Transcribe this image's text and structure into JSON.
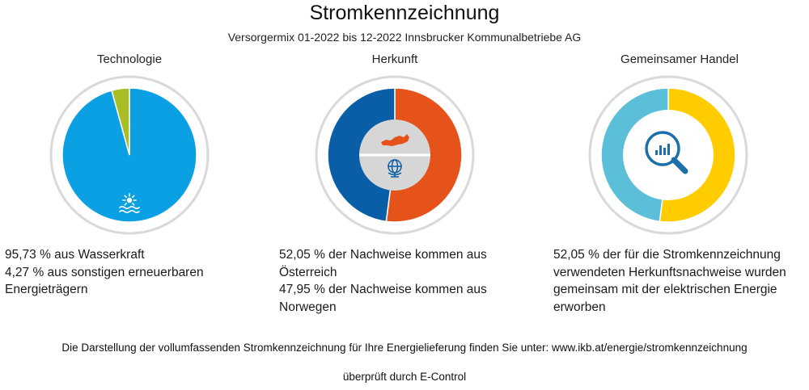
{
  "title": "Stromkennzeichnung",
  "subtitle": "Versorgermix 01-2022 bis 12-2022 Innsbrucker Kommunalbetriebe AG",
  "colors": {
    "hydro": "#0aa0e3",
    "other_renewable": "#a9bd25",
    "austria": "#e5531a",
    "norway": "#0a5ea8",
    "joint_trade": "#ffcc00",
    "separate_trade": "#5bbfd9",
    "ring": "#d9d9d9"
  },
  "charts": [
    {
      "title": "Technologie",
      "description": [
        "95,73 % aus Wasserkraft",
        "4,27 % aus sonstigen erneuerbaren Energieträgern"
      ]
    },
    {
      "title": "Herkunft",
      "description": [
        "52,05 % der Nachweise kommen aus Österreich",
        "47,95 % der Nachweise kommen aus Norwegen"
      ]
    },
    {
      "title": "Gemeinsamer Handel",
      "description": [
        "52,05 % der für die Stromkennzeichnung verwendeten Herkunftsnachweise wurden gemeinsam mit der elektrischen Energie erworben"
      ]
    }
  ],
  "footer": {
    "link_text": "Die Darstellung der vollumfassenden Stromkennzeichnung für Ihre Energielieferung finden Sie unter: www.ikb.at/energie/stromkennzeichnung",
    "verified": "überprüft durch E-Control"
  },
  "icons": [
    "sun-water-icon",
    "austria-map-icon",
    "globe-icon",
    "magnifier-chart-icon"
  ],
  "chart_data": [
    {
      "type": "pie",
      "title": "Technologie",
      "series": [
        {
          "name": "Wasserkraft",
          "value": 95.73,
          "color": "#0aa0e3"
        },
        {
          "name": "sonstige erneuerbare Energieträger",
          "value": 4.27,
          "color": "#a9bd25"
        }
      ]
    },
    {
      "type": "pie",
      "title": "Herkunft",
      "series": [
        {
          "name": "Österreich",
          "value": 52.05,
          "color": "#e5531a"
        },
        {
          "name": "Norwegen",
          "value": 47.95,
          "color": "#0a5ea8"
        }
      ]
    },
    {
      "type": "pie",
      "title": "Gemeinsamer Handel",
      "series": [
        {
          "name": "gemeinsam mit der elektrischen Energie erworben",
          "value": 52.05,
          "color": "#ffcc00"
        },
        {
          "name": "",
          "value": 47.95,
          "color": "#5bbfd9"
        }
      ]
    }
  ]
}
